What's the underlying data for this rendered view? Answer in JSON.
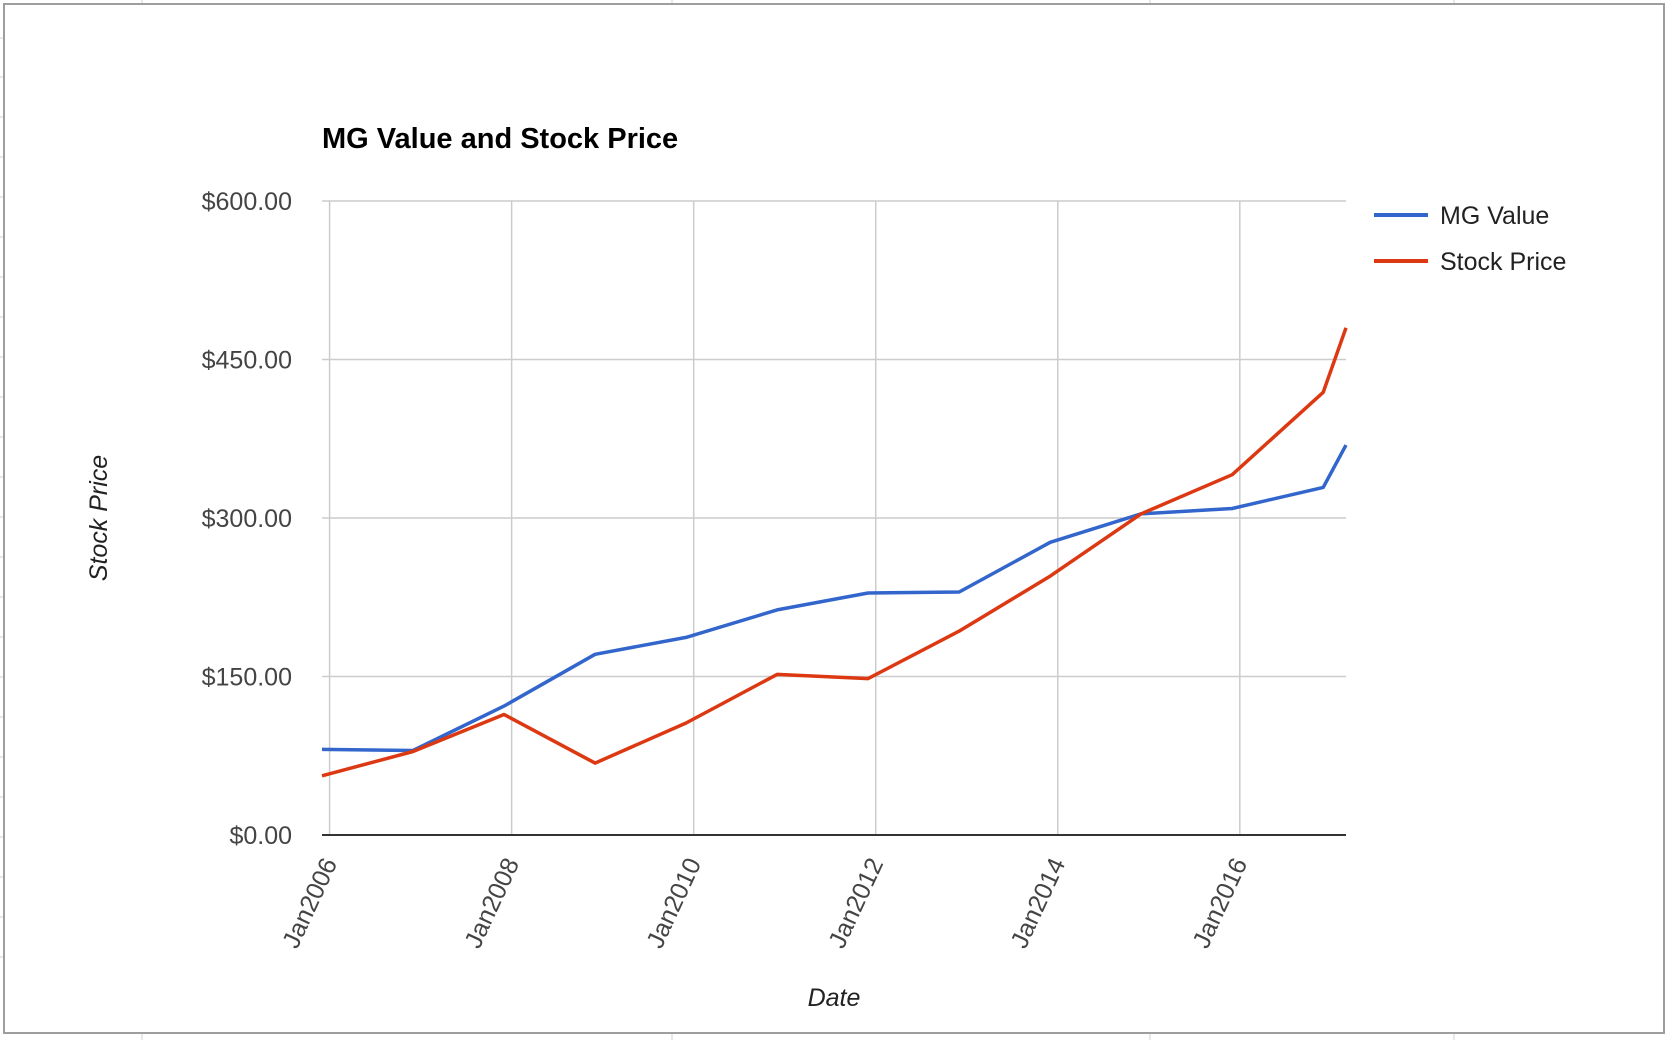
{
  "chart_data": {
    "type": "line",
    "title": "MG Value and Stock Price",
    "xlabel": "Date",
    "ylabel": "Stock Price",
    "ylim": [
      0,
      600
    ],
    "y_ticks": [
      "$0.00",
      "$150.00",
      "$300.00",
      "$450.00",
      "$600.00"
    ],
    "y_tick_values": [
      0,
      150,
      300,
      450,
      600
    ],
    "x_ticks": [
      "Jan2006",
      "Jan2008",
      "Jan2010",
      "Jan2012",
      "Jan2014",
      "Jan2016"
    ],
    "x_tick_values": [
      "2006-01",
      "2008-01",
      "2010-01",
      "2012-01",
      "2014-01",
      "2016-01"
    ],
    "xlim": [
      "2005-12",
      "2017-03"
    ],
    "grid": true,
    "legend_position": "right",
    "x": [
      "2005-12",
      "2006-12",
      "2007-12",
      "2008-12",
      "2009-12",
      "2010-12",
      "2011-12",
      "2012-12",
      "2013-12",
      "2014-12",
      "2015-12",
      "2016-12",
      "2017-03"
    ],
    "series": [
      {
        "name": "MG Value",
        "color": "#3366cc",
        "values": [
          81,
          80,
          122,
          171,
          187,
          213,
          229,
          230,
          277,
          304,
          309,
          329,
          369
        ]
      },
      {
        "name": "Stock Price",
        "color": "#dc3912",
        "values": [
          56,
          79,
          114,
          68,
          106,
          152,
          148,
          193,
          245,
          304,
          341,
          419,
          480
        ]
      }
    ]
  }
}
